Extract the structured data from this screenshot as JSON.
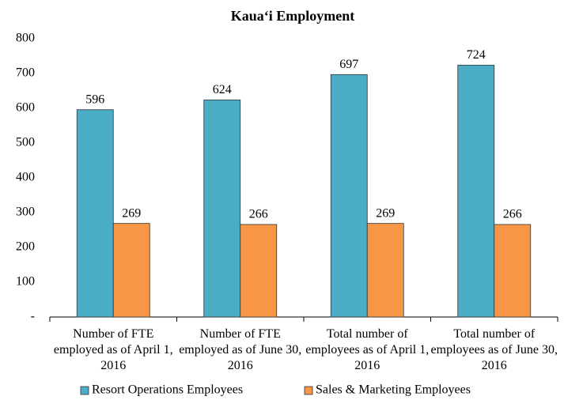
{
  "chart_data": {
    "type": "bar",
    "title": "Kaua‘i Employment",
    "categories": [
      "Number of FTE employed as of April 1, 2016",
      "Number of FTE employed as of June 30, 2016",
      "Total number of employees as of April 1, 2016",
      "Total number of employees as of June 30, 2016"
    ],
    "series": [
      {
        "name": "Resort Operations Employees",
        "color": "#4bacc6",
        "values": [
          596,
          624,
          697,
          724
        ]
      },
      {
        "name": "Sales & Marketing Employees",
        "color": "#f79646",
        "values": [
          269,
          266,
          269,
          266
        ]
      }
    ],
    "ylim": [
      0,
      800
    ],
    "yticks": [
      {
        "value": 0,
        "label": "-"
      },
      100,
      200,
      300,
      400,
      500,
      600,
      700,
      800
    ],
    "legend": "bottom"
  }
}
